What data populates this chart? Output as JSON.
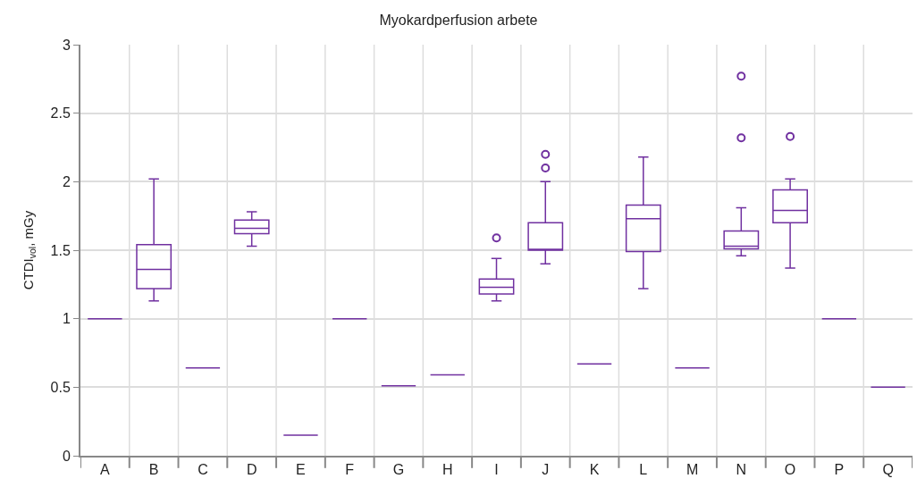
{
  "chart_data": {
    "type": "box",
    "title": "Myokardperfusion arbete",
    "ylabel": "CTDI$_{vol}$, mGy",
    "categories": [
      "A",
      "B",
      "C",
      "D",
      "E",
      "F",
      "G",
      "H",
      "I",
      "J",
      "K",
      "L",
      "M",
      "N",
      "O",
      "P",
      "Q"
    ],
    "color": "#7030a0",
    "ylim": [
      0,
      3
    ],
    "yticks": [
      0,
      0.5,
      1,
      1.5,
      2,
      2.5,
      3
    ],
    "grid": true,
    "boxes": [
      {
        "low": 1.0,
        "q1": 1.0,
        "median": 1.0,
        "q3": 1.0,
        "high": 1.0
      },
      {
        "low": 1.13,
        "q1": 1.22,
        "median": 1.36,
        "q3": 1.54,
        "high": 2.02
      },
      {
        "low": 0.64,
        "q1": 0.64,
        "median": 0.64,
        "q3": 0.64,
        "high": 0.64
      },
      {
        "low": 1.53,
        "q1": 1.62,
        "median": 1.66,
        "q3": 1.72,
        "high": 1.78
      },
      {
        "low": 0.15,
        "q1": 0.15,
        "median": 0.15,
        "q3": 0.15,
        "high": 0.15
      },
      {
        "low": 1.0,
        "q1": 1.0,
        "median": 1.0,
        "q3": 1.0,
        "high": 1.0
      },
      {
        "low": 0.51,
        "q1": 0.51,
        "median": 0.51,
        "q3": 0.51,
        "high": 0.51
      },
      {
        "low": 0.59,
        "q1": 0.59,
        "median": 0.59,
        "q3": 0.59,
        "high": 0.59
      },
      {
        "low": 1.13,
        "q1": 1.18,
        "median": 1.23,
        "q3": 1.29,
        "high": 1.44,
        "outliers": [
          1.59
        ]
      },
      {
        "low": 1.4,
        "q1": 1.5,
        "median": 1.5,
        "q3": 1.7,
        "high": 2.0,
        "outliers": [
          2.1,
          2.2
        ]
      },
      {
        "low": 0.67,
        "q1": 0.67,
        "median": 0.67,
        "q3": 0.67,
        "high": 0.67
      },
      {
        "low": 1.22,
        "q1": 1.49,
        "median": 1.73,
        "q3": 1.83,
        "high": 2.18
      },
      {
        "low": 0.64,
        "q1": 0.64,
        "median": 0.64,
        "q3": 0.64,
        "high": 0.64
      },
      {
        "low": 1.46,
        "q1": 1.51,
        "median": 1.53,
        "q3": 1.64,
        "high": 1.81,
        "outliers": [
          2.32,
          2.77
        ]
      },
      {
        "low": 1.37,
        "q1": 1.7,
        "median": 1.79,
        "q3": 1.94,
        "high": 2.02,
        "outliers": [
          2.33
        ]
      },
      {
        "low": 1.0,
        "q1": 1.0,
        "median": 1.0,
        "q3": 1.0,
        "high": 1.0
      },
      {
        "low": 0.5,
        "q1": 0.5,
        "median": 0.5,
        "q3": 0.5,
        "high": 0.5
      }
    ]
  }
}
